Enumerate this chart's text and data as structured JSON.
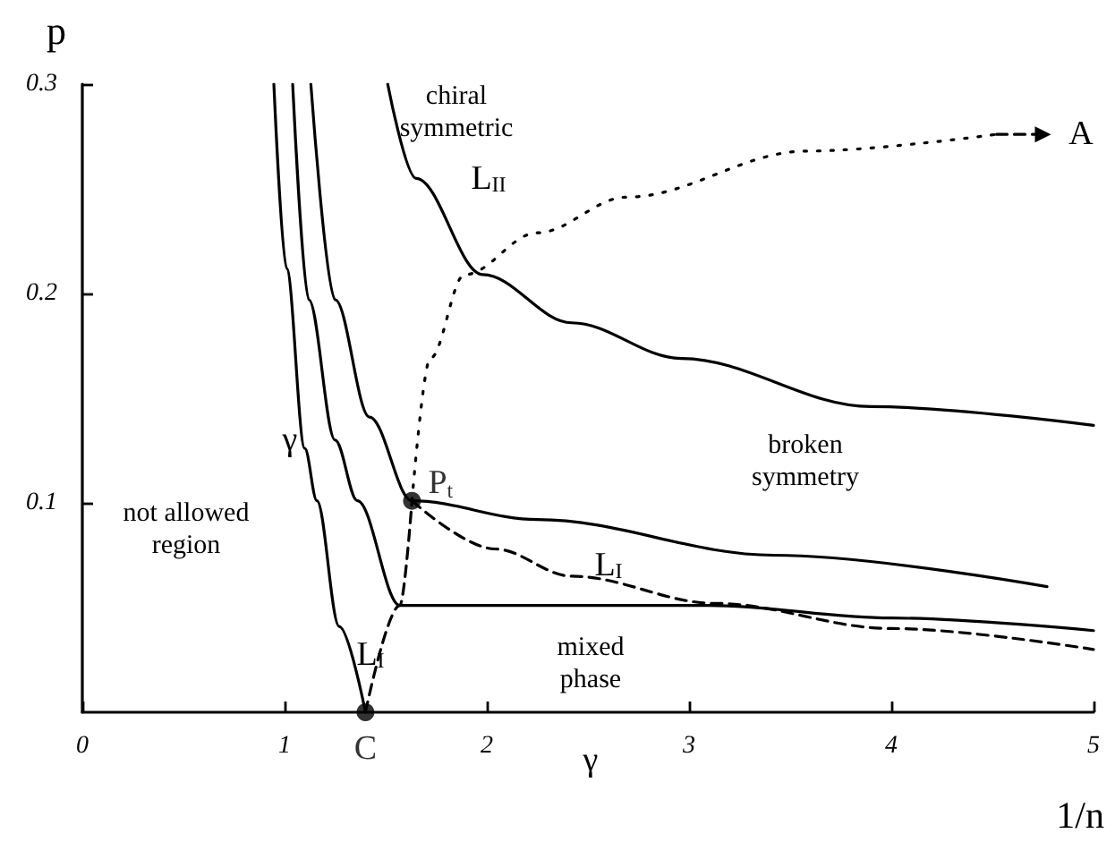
{
  "chart_data": {
    "type": "line",
    "xlabel": "1/n",
    "ylabel": "p",
    "xlim": [
      0,
      5
    ],
    "ylim": [
      0,
      0.3
    ],
    "xticks": [
      0,
      1,
      2,
      3,
      4,
      5
    ],
    "yticks": [
      0.1,
      0.2,
      0.3
    ],
    "grid": false,
    "marker": "none",
    "series": [
      {
        "type": "line",
        "color": "#000000",
        "line_style": "solid",
        "x": [
          0.947,
          1.01,
          1.1,
          1.16,
          1.27,
          1.4
        ],
        "values": [
          0.3,
          0.212,
          0.126,
          0.101,
          0.041,
          0
        ]
      },
      {
        "type": "line",
        "color": "#000000",
        "line_style": "solid",
        "x": [
          1.04,
          1.12,
          1.25,
          1.36,
          1.57,
          2.5,
          3.1,
          4,
          5
        ],
        "values": [
          0.3,
          0.197,
          0.13,
          0.101,
          0.051,
          0.051,
          0.051,
          0.045,
          0.039
        ]
      },
      {
        "type": "line",
        "color": "#000000",
        "line_style": "solid",
        "x": [
          1.13,
          1.25,
          1.42,
          1.63,
          2.25,
          3.42,
          4.77
        ],
        "values": [
          0.3,
          0.197,
          0.141,
          0.101,
          0.092,
          0.075,
          0.06
        ]
      },
      {
        "type": "line",
        "color": "#000000",
        "line_style": "solid",
        "x": [
          1.51,
          1.65,
          1.98,
          2.42,
          2.96,
          3.9,
          5
        ],
        "values": [
          0.3,
          0.255,
          0.209,
          0.186,
          0.169,
          0.146,
          0.137
        ]
      },
      {
        "type": "line",
        "color": "#000000",
        "line_style": "dotted",
        "x": [
          1.63,
          1.72,
          1.89,
          2.25,
          2.69,
          3.58,
          4.52
        ],
        "values": [
          0.101,
          0.169,
          0.209,
          0.229,
          0.246,
          0.268,
          0.276
        ]
      },
      {
        "type": "line",
        "color": "#000000",
        "line_style": "dashed",
        "marker": "triangle",
        "x": [
          4.52,
          4.75
        ],
        "values": [
          0.276,
          0.276
        ]
      },
      {
        "type": "line",
        "color": "#000000",
        "line_style": "dashed",
        "x": [
          1.4,
          1.57,
          1.63
        ],
        "values": [
          0,
          0.051,
          0.101
        ]
      },
      {
        "type": "line",
        "color": "#000000",
        "line_style": "dashed",
        "x": [
          1.63,
          2.04,
          2.42,
          3.13,
          4,
          5
        ],
        "values": [
          0.101,
          0.078,
          0.065,
          0.052,
          0.04,
          0.03
        ]
      },
      {
        "type": "scatter",
        "name": "C",
        "color": "#000000",
        "marker": "circle",
        "x": [
          1.4
        ],
        "values": [
          0
        ]
      },
      {
        "type": "scatter",
        "name": "P$_{t}$",
        "color": "#000000",
        "marker": "circle",
        "x": [
          1.63
        ],
        "values": [
          0.101
        ]
      }
    ],
    "annotations": [
      "chiral\nsymmetric",
      "L$_{II}$",
      "A",
      "broken\nsymmetry",
      "L$_{I}$",
      "L$_{I}$",
      "γ",
      "not allowed\nregion",
      "mixed\nphase",
      "γ"
    ]
  }
}
